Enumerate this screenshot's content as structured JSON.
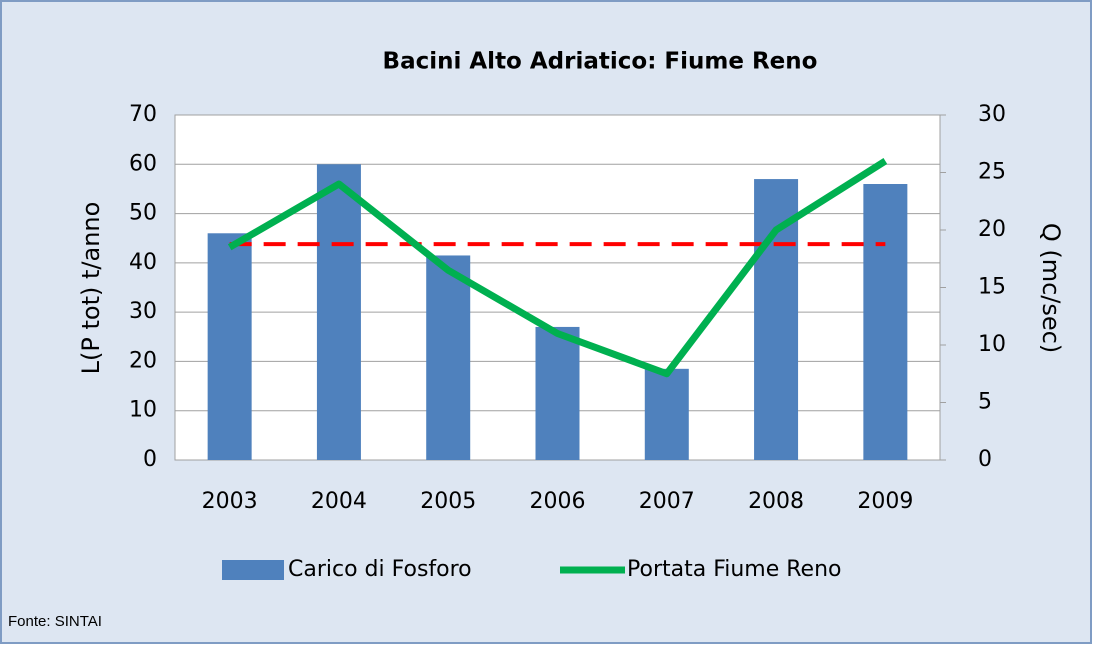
{
  "chart_data": {
    "type": "bar",
    "title": "Bacini Alto Adriatico: Fiume Reno",
    "categories": [
      "2003",
      "2004",
      "2005",
      "2006",
      "2007",
      "2008",
      "2009"
    ],
    "series": [
      {
        "name": "Carico di Fosforo",
        "color": "#4f81bd",
        "type": "bar",
        "values": [
          46,
          60,
          41.5,
          27,
          18.5,
          57,
          56
        ]
      },
      {
        "name": "Portata Fiume Reno",
        "color": "#00b050",
        "type": "line",
        "axis": "y2",
        "values": [
          18.5,
          24,
          16.5,
          11,
          7.5,
          20,
          26
        ]
      }
    ],
    "reference_line": {
      "value": 43.8,
      "color": "#ff0000"
    },
    "ylabel": "L(P tot) t/anno",
    "y2label": "Q (mc/sec)",
    "ylim": [
      0,
      70
    ],
    "yticks": [
      0,
      10,
      20,
      30,
      40,
      50,
      60,
      70
    ],
    "y2lim": [
      0,
      30
    ],
    "y2ticks": [
      0,
      5,
      10,
      15,
      20,
      25,
      30
    ],
    "grid": true,
    "legend": "bottom",
    "source": "Fonte: SINTAI"
  }
}
